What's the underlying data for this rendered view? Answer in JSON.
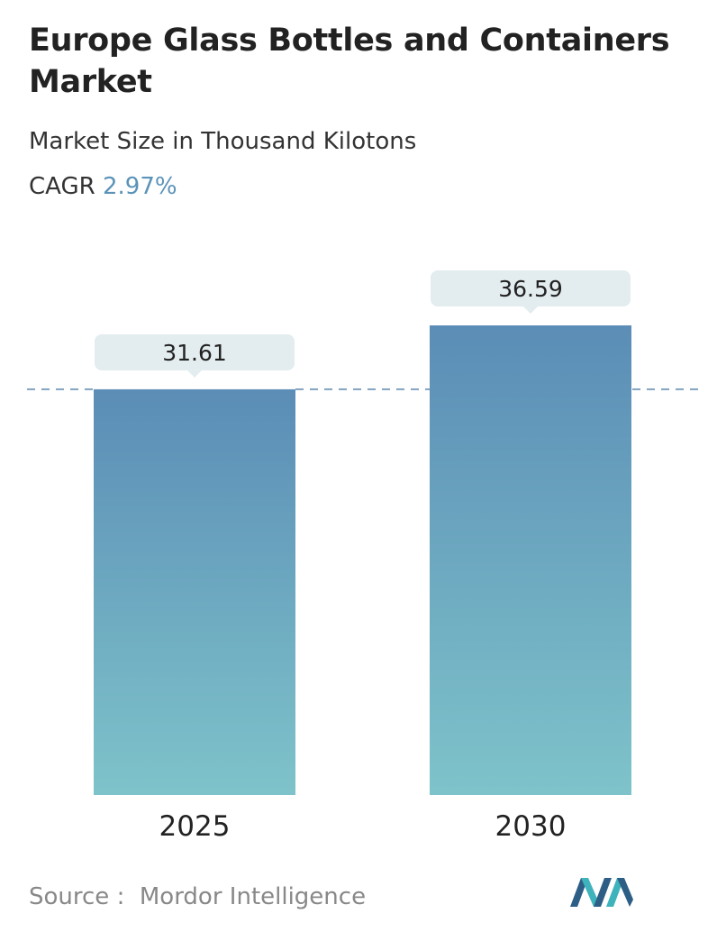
{
  "header": {
    "title": "Europe Glass Bottles and Containers Market",
    "subtitle": "Market Size in Thousand Kilotons",
    "cagr_label": "CAGR",
    "cagr_value": "2.97%"
  },
  "chart_data": {
    "type": "bar",
    "categories": [
      "2025",
      "2030"
    ],
    "values": [
      31.61,
      36.59
    ],
    "value_labels": [
      "31.61",
      "36.59"
    ],
    "title": "Europe Glass Bottles and Containers Market",
    "ylabel": "",
    "xlabel": "",
    "ylim": [
      0,
      36.59
    ],
    "grid": false,
    "reference_line": {
      "value": 31.61,
      "style": "dashed"
    }
  },
  "footer": {
    "source_label": "Source :",
    "source_name": "Mordor Intelligence"
  },
  "colors": {
    "bar_top": "#5b8db6",
    "bar_bottom": "#7ec3ca",
    "label_bubble": "#e3ecee",
    "dashed_line": "#5b86ad",
    "cagr_value": "#5b93b8",
    "logo_dark": "#2d5e86",
    "logo_light": "#3fb3bc"
  },
  "icons": {
    "logo": "mordor-intelligence-logo"
  }
}
